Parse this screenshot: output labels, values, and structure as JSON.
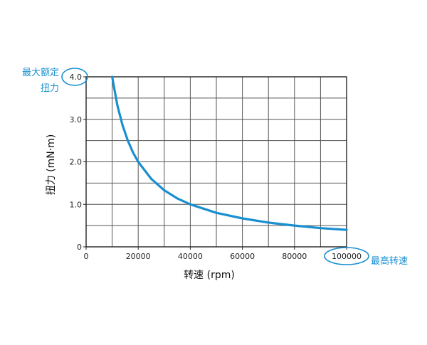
{
  "chart_data": {
    "type": "line",
    "xlabel": "转速 (rpm)",
    "ylabel": "扭力 (mN·m)",
    "xlim": [
      0,
      100000
    ],
    "ylim": [
      0,
      4.0
    ],
    "x_ticks": [
      0,
      20000,
      40000,
      60000,
      80000,
      100000
    ],
    "x_tick_labels": [
      "0",
      "20000",
      "40000",
      "60000",
      "80000",
      "100000"
    ],
    "y_ticks": [
      0,
      1.0,
      2.0,
      3.0,
      4.0
    ],
    "y_tick_labels": [
      "0",
      "1.0",
      "2.0",
      "3.0",
      "4.0"
    ],
    "grid": true,
    "series": [
      {
        "color": "#1a8fd0",
        "x": [
          10000,
          12000,
          14000,
          16000,
          18000,
          20000,
          25000,
          30000,
          35000,
          40000,
          50000,
          60000,
          70000,
          80000,
          90000,
          100000
        ],
        "y": [
          4.0,
          3.33,
          2.86,
          2.5,
          2.22,
          2.0,
          1.6,
          1.33,
          1.14,
          1.0,
          0.8,
          0.67,
          0.57,
          0.5,
          0.44,
          0.4
        ]
      }
    ],
    "annotations": {
      "max_torque": "最大额定扭力",
      "max_torque_line1": "最大额定",
      "max_torque_line2": "扭力",
      "max_speed": "最高转速",
      "accent_color": "#1a8fd0"
    }
  }
}
